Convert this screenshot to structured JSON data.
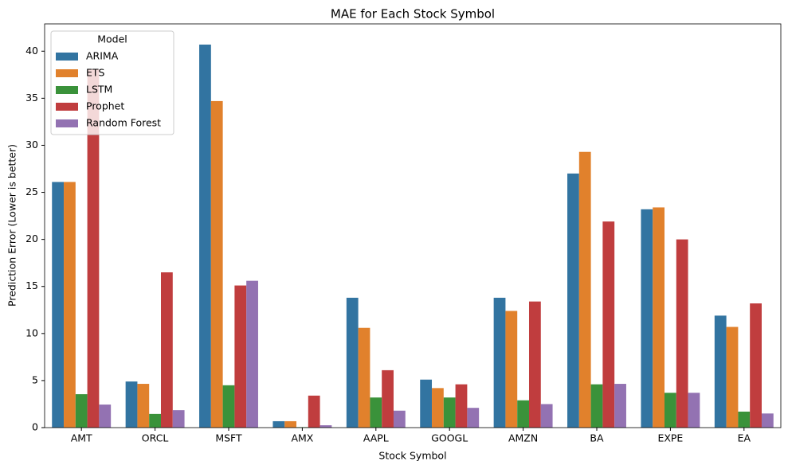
{
  "chart_data": {
    "type": "bar",
    "title": "MAE for Each Stock Symbol",
    "x_label": "Stock Symbol",
    "y_label": "Prediction Error (Lower is better)",
    "legend_title": "Model",
    "legend_position": "upper left",
    "categories": [
      "AMT",
      "ORCL",
      "MSFT",
      "AMX",
      "AAPL",
      "GOOGL",
      "AMZN",
      "BA",
      "EXPE",
      "EA"
    ],
    "series": [
      {
        "name": "ARIMA",
        "color": "#3274a1",
        "values": [
          26.1,
          4.9,
          40.7,
          0.68,
          13.8,
          5.1,
          13.8,
          27.0,
          23.2,
          11.9
        ]
      },
      {
        "name": "ETS",
        "color": "#e1812c",
        "values": [
          26.1,
          4.65,
          34.7,
          0.68,
          10.6,
          4.2,
          12.4,
          29.3,
          23.4,
          10.7
        ]
      },
      {
        "name": "LSTM",
        "color": "#3a923a",
        "values": [
          3.55,
          1.45,
          4.5,
          0.05,
          3.2,
          3.2,
          2.9,
          4.6,
          3.7,
          1.7
        ]
      },
      {
        "name": "Prophet",
        "color": "#c03d3e",
        "values": [
          38.1,
          16.5,
          15.1,
          3.4,
          6.1,
          4.6,
          13.4,
          21.9,
          20.0,
          13.2
        ]
      },
      {
        "name": "Random Forest",
        "color": "#9372b2",
        "values": [
          2.45,
          1.85,
          15.6,
          0.25,
          1.8,
          2.1,
          2.5,
          4.65,
          3.7,
          1.5
        ]
      }
    ],
    "ylim": [
      0,
      42.9
    ],
    "yticks": [
      0,
      5,
      10,
      15,
      20,
      25,
      30,
      35,
      40
    ]
  }
}
